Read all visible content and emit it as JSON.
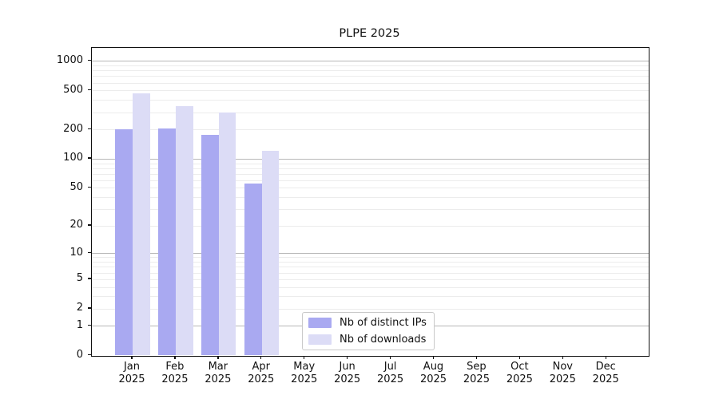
{
  "title": "PLPE 2025",
  "chart_data": {
    "type": "bar",
    "title": "PLPE 2025",
    "categories": [
      "Jan",
      "Feb",
      "Mar",
      "Apr",
      "May",
      "Jun",
      "Jul",
      "Aug",
      "Sep",
      "Oct",
      "Nov",
      "Dec"
    ],
    "year_label": "2025",
    "series": [
      {
        "name": "Nb of distinct IPs",
        "color": "#a9a9f1",
        "values": [
          200,
          205,
          175,
          55,
          0,
          0,
          0,
          0,
          0,
          0,
          0,
          0
        ]
      },
      {
        "name": "Nb of downloads",
        "color": "#dcdcf6",
        "values": [
          470,
          345,
          300,
          120,
          0,
          0,
          0,
          0,
          0,
          0,
          0,
          0
        ]
      }
    ],
    "yscale": "log10(1+y)",
    "yticks": [
      0,
      1,
      2,
      5,
      10,
      20,
      50,
      100,
      200,
      500,
      1000
    ],
    "ylim": [
      0,
      1360
    ],
    "xlabel": "",
    "ylabel": "",
    "grid": "both",
    "grid_major_color": "#b7b7b7",
    "grid_minor_color": "#ececec",
    "axis_color": "#111111",
    "legend_position": "lower-center inside plot"
  }
}
